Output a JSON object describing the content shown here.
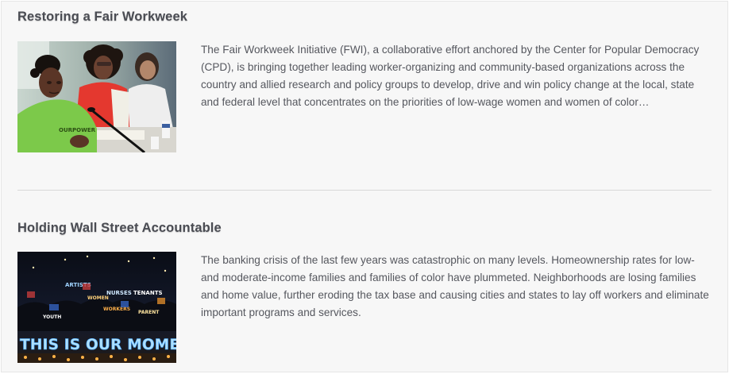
{
  "articles": [
    {
      "title": "Restoring a Fair Workweek",
      "excerpt": "The Fair Workweek Initiative (FWI), a collaborative effort anchored by the Center for Popular Democracy (CPD), is bringing together leading worker-organizing and community-based organizations across the country and allied research and policy groups to develop, drive and win policy change at the local, state and federal level that concentrates on the priorities of low-wage women and women of color…",
      "image_shirt_text": "OURPOWER"
    },
    {
      "title": "Holding Wall Street Accountable",
      "excerpt": "The banking crisis of the last few years was catastrophic on many levels. Homeownership rates for low- and moderate-income families and families of color have plummeted. Neighborhoods are losing families and home value, further eroding the tax base and causing cities and states to lay off workers and eliminate important programs and services.",
      "image_sign_text": "THIS IS OUR MOMENT",
      "image_lit_words": [
        "ARTISTS",
        "NURSES",
        "TENANTS",
        "WOMEN",
        "WORKERS",
        "PARENT",
        "YOUTH"
      ]
    }
  ],
  "colors": {
    "title": "#4a4c53",
    "body_text": "#55575e",
    "background": "#f7f7f7",
    "divider": "#d9d9d9"
  }
}
